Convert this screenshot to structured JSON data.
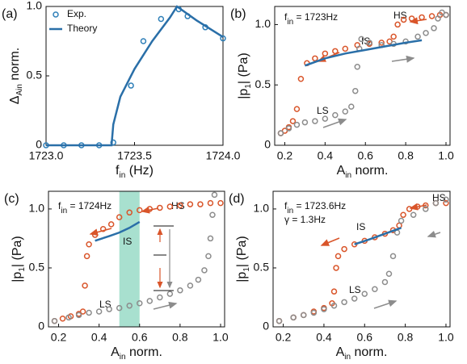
{
  "chart_data": [
    {
      "type": "scatter",
      "panel": "(a)",
      "xlabel": [
        "f",
        "in",
        " (Hz)"
      ],
      "ylabel": [
        "Δ",
        "Ain",
        " norm."
      ],
      "xlim": [
        1723,
        1724
      ],
      "xticks": [
        {
          "value": 1723,
          "label": "1723.0"
        },
        1723.5,
        {
          "value": 1724,
          "label": "1724.0"
        }
      ],
      "ylim": [
        0,
        1
      ],
      "yticks": [
        0,
        0.5,
        {
          "value": 1,
          "label": "1.0"
        }
      ],
      "legend": "upper left",
      "annotations": [],
      "series": [
        {
          "name": "Exp.",
          "mode": "markers",
          "color": "#2e7fb8",
          "x": [
            1723.0,
            1723.1,
            1723.2,
            1723.3,
            1723.38,
            1723.48,
            1723.55,
            1723.65,
            1723.75,
            1723.8,
            1723.9,
            1724.0
          ],
          "values": [
            0,
            0,
            0,
            0,
            0.02,
            0.43,
            0.75,
            0.91,
            0.98,
            0.93,
            0.85,
            0.77
          ]
        },
        {
          "name": "Theory",
          "mode": "line",
          "color": "#2a6fa8",
          "x": [
            1723.0,
            1723.37,
            1723.38,
            1723.42,
            1723.5,
            1723.6,
            1723.7,
            1723.74,
            1723.85,
            1724.0
          ],
          "values": [
            0,
            0,
            0.15,
            0.35,
            0.55,
            0.75,
            0.92,
            1.0,
            0.9,
            0.78
          ]
        }
      ]
    },
    {
      "type": "scatter",
      "panel": "(b)",
      "xlabel": [
        "A",
        "in",
        " norm."
      ],
      "ylabel": [
        "|p",
        "1",
        "| (Pa)"
      ],
      "xlim": [
        0.15,
        1.02
      ],
      "xticks": [
        0.2,
        0.4,
        0.6,
        0.8,
        {
          "value": 1,
          "label": "1.0"
        }
      ],
      "ylim": [
        0,
        1.15
      ],
      "yticks": [
        0,
        0.5,
        {
          "value": 1,
          "label": "1.0"
        }
      ],
      "annotations": [
        [
          "f",
          "in",
          " = 1723Hz"
        ],
        [
          "HS"
        ],
        [
          "IS"
        ],
        [
          "LS"
        ]
      ],
      "series": [
        {
          "mode": "markers",
          "color": "#d9552a",
          "x": [
            1.0,
            0.97,
            0.93,
            0.88,
            0.83,
            0.79,
            0.76,
            0.74,
            0.72,
            0.68,
            0.62,
            0.56,
            0.5,
            0.45,
            0.4,
            0.35,
            0.31,
            0.28,
            0.26,
            0.24,
            0.22,
            0.2,
            0.18
          ],
          "values": [
            1.08,
            1.08,
            1.07,
            1.06,
            1.05,
            1.04,
            1.0,
            0.9,
            0.86,
            0.85,
            0.84,
            0.83,
            0.8,
            0.78,
            0.76,
            0.72,
            0.68,
            0.55,
            0.3,
            0.2,
            0.15,
            0.12,
            0.1
          ]
        },
        {
          "mode": "markers",
          "color": "#8c8c8c",
          "x": [
            0.18,
            0.22,
            0.26,
            0.3,
            0.35,
            0.4,
            0.45,
            0.5,
            0.53,
            0.55,
            0.56,
            0.57,
            0.58,
            0.62,
            0.68,
            0.74,
            0.8,
            0.86,
            0.9,
            0.94,
            0.96,
            0.98,
            1.0
          ],
          "values": [
            0.1,
            0.14,
            0.17,
            0.19,
            0.2,
            0.22,
            0.25,
            0.28,
            0.32,
            0.45,
            0.65,
            0.8,
            0.88,
            0.85,
            0.83,
            0.84,
            0.86,
            0.9,
            0.93,
            0.97,
            1.05,
            1.1,
            1.08
          ]
        },
        {
          "mode": "line",
          "color": "#2a6fa8",
          "x": [
            0.3,
            0.4,
            0.5,
            0.6,
            0.7,
            0.8,
            0.88
          ],
          "values": [
            0.66,
            0.72,
            0.76,
            0.79,
            0.82,
            0.85,
            0.87
          ]
        }
      ]
    },
    {
      "type": "scatter",
      "panel": "(c)",
      "xlabel": [
        "A",
        "in",
        " norm."
      ],
      "ylabel": [
        "|p",
        "1",
        "| (Pa)"
      ],
      "xlim": [
        0.15,
        1.02
      ],
      "xticks": [
        0.2,
        0.4,
        0.6,
        0.8,
        {
          "value": 1,
          "label": "1.0"
        }
      ],
      "ylim": [
        0,
        1.15
      ],
      "yticks": [
        0,
        0.5,
        {
          "value": 1,
          "label": "1.0"
        }
      ],
      "band": [
        0.5,
        0.6
      ],
      "band_color": "#a8e0cf",
      "annotations": [
        [
          "f",
          "in",
          " = 1724Hz"
        ],
        [
          "HS"
        ],
        [
          "IS"
        ],
        [
          "LS"
        ]
      ],
      "series": [
        {
          "mode": "markers",
          "color": "#d9552a",
          "x": [
            0.18,
            0.22,
            0.26,
            0.3,
            0.32,
            0.33,
            0.34,
            0.35,
            0.38,
            0.42,
            0.46,
            0.5,
            0.55,
            0.6,
            0.65,
            0.7,
            0.75,
            0.8,
            0.85,
            0.9,
            0.95,
            1.0
          ],
          "values": [
            0.05,
            0.07,
            0.09,
            0.11,
            0.13,
            0.35,
            0.6,
            0.7,
            0.78,
            0.83,
            0.87,
            0.93,
            0.97,
            0.99,
            1.0,
            1.01,
            1.02,
            1.03,
            1.04,
            1.04,
            1.05,
            1.05
          ]
        },
        {
          "mode": "markers",
          "color": "#8c8c8c",
          "x": [
            0.18,
            0.25,
            0.3,
            0.35,
            0.4,
            0.45,
            0.5,
            0.55,
            0.6,
            0.65,
            0.7,
            0.75,
            0.8,
            0.85,
            0.89,
            0.92,
            0.94,
            0.95,
            0.96,
            0.97
          ],
          "values": [
            0.05,
            0.08,
            0.1,
            0.12,
            0.13,
            0.15,
            0.16,
            0.18,
            0.2,
            0.22,
            0.25,
            0.28,
            0.31,
            0.35,
            0.4,
            0.48,
            0.6,
            0.75,
            0.95,
            1.12
          ]
        },
        {
          "mode": "line",
          "color": "#2a6fa8",
          "x": [
            0.38,
            0.45,
            0.5,
            0.55,
            0.6
          ],
          "values": [
            0.73,
            0.77,
            0.8,
            0.84,
            0.89
          ]
        }
      ]
    },
    {
      "type": "scatter",
      "panel": "(d)",
      "xlabel": [
        "A",
        "in",
        " norm."
      ],
      "ylabel": [
        "|p",
        "1",
        "| (Pa)"
      ],
      "xlim": [
        0.15,
        1.02
      ],
      "xticks": [
        0.2,
        0.4,
        0.6,
        0.8,
        {
          "value": 1,
          "label": "1.0"
        }
      ],
      "ylim": [
        0,
        1.15
      ],
      "yticks": [
        0,
        0.5,
        {
          "value": 1,
          "label": "1.0"
        }
      ],
      "annotations": [
        [
          "f",
          "in",
          " = 1723.6Hz"
        ],
        [
          "γ = 1.3Hz"
        ],
        [
          "HS"
        ],
        [
          "IS"
        ],
        [
          "LS"
        ]
      ],
      "series": [
        {
          "mode": "markers",
          "color": "#d9552a",
          "x": [
            0.18,
            0.25,
            0.3,
            0.35,
            0.4,
            0.44,
            0.45,
            0.46,
            0.47,
            0.5,
            0.55,
            0.6,
            0.65,
            0.7,
            0.74,
            0.77,
            0.79,
            0.82,
            0.86,
            0.9,
            0.95,
            1.0
          ],
          "values": [
            0.05,
            0.08,
            0.1,
            0.13,
            0.16,
            0.2,
            0.3,
            0.5,
            0.6,
            0.66,
            0.7,
            0.73,
            0.76,
            0.79,
            0.82,
            0.86,
            0.95,
            1.0,
            1.02,
            1.03,
            1.05,
            1.05
          ]
        },
        {
          "mode": "markers",
          "color": "#8c8c8c",
          "x": [
            0.18,
            0.25,
            0.3,
            0.35,
            0.4,
            0.45,
            0.5,
            0.55,
            0.6,
            0.65,
            0.7,
            0.72,
            0.74,
            0.76,
            0.78,
            0.84,
            0.9,
            0.95,
            1.0
          ],
          "values": [
            0.05,
            0.08,
            0.1,
            0.12,
            0.15,
            0.18,
            0.21,
            0.24,
            0.28,
            0.32,
            0.38,
            0.45,
            0.6,
            0.8,
            0.9,
            0.95,
            1.0,
            1.05,
            1.08
          ]
        },
        {
          "mode": "line",
          "color": "#2a6fa8",
          "x": [
            0.55,
            0.62,
            0.7,
            0.78
          ],
          "values": [
            0.7,
            0.74,
            0.79,
            0.84
          ]
        }
      ]
    }
  ]
}
